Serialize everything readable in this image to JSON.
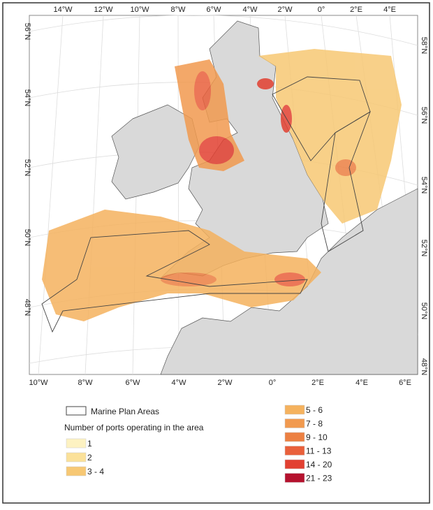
{
  "graticule": {
    "top": [
      "14°W",
      "12°W",
      "10°W",
      "8°W",
      "6°W",
      "4°W",
      "2°W",
      "0°",
      "2°E",
      "4°E"
    ],
    "bottom": [
      "10°W",
      "8°W",
      "6°W",
      "4°W",
      "2°W",
      "0°",
      "2°E",
      "4°E",
      "6°E"
    ],
    "left": [
      "56°N",
      "54°N",
      "52°N",
      "50°N",
      "48°N"
    ],
    "right": [
      "58°N",
      "56°N",
      "54°N",
      "52°N",
      "50°N",
      "48°N"
    ]
  },
  "legend": {
    "boundary": "Marine Plan Areas",
    "title": "Number of ports operating in the area",
    "classes": [
      {
        "label": "1",
        "color": "#fdf2c2"
      },
      {
        "label": "2",
        "color": "#fbe199"
      },
      {
        "label": "3 - 4",
        "color": "#f7c874"
      },
      {
        "label": "5 - 6",
        "color": "#f5b25e"
      },
      {
        "label": "7 - 8",
        "color": "#f19a4f"
      },
      {
        "label": "9 - 10",
        "color": "#ec8042"
      },
      {
        "label": "11 - 13",
        "color": "#e9603b"
      },
      {
        "label": "14 - 20",
        "color": "#e24031"
      },
      {
        "label": "21 - 23",
        "color": "#b5122e"
      }
    ]
  }
}
